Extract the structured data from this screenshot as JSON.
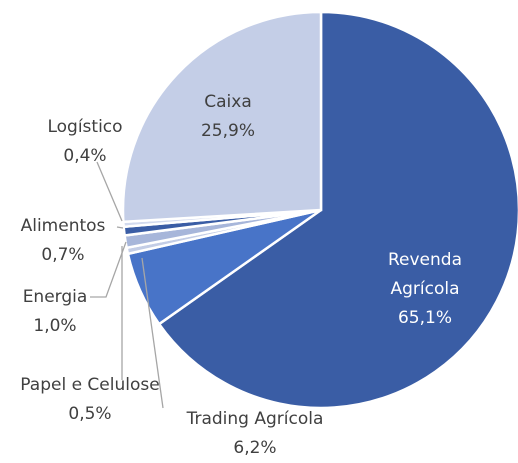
{
  "chart_data": {
    "type": "pie",
    "categories": [
      "Revenda Agrícola",
      "Trading Agrícola",
      "Papel e Celulose",
      "Energia",
      "Alimentos",
      "Logístico",
      "Caixa"
    ],
    "values": [
      65.1,
      6.2,
      0.5,
      1.0,
      0.7,
      0.4,
      25.9
    ],
    "value_labels": [
      "65,1%",
      "6,2%",
      "0,5%",
      "1,0%",
      "0,7%",
      "0,4%",
      "25,9%"
    ],
    "colors": [
      "#3a5da5",
      "#4874c8",
      "#c3cde6",
      "#a7b6da",
      "#3a5da5",
      "#d2daee",
      "#c4cee7"
    ]
  }
}
